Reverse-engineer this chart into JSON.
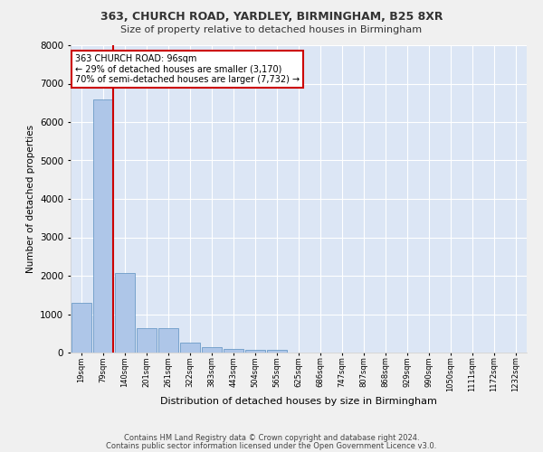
{
  "title1": "363, CHURCH ROAD, YARDLEY, BIRMINGHAM, B25 8XR",
  "title2": "Size of property relative to detached houses in Birmingham",
  "xlabel": "Distribution of detached houses by size in Birmingham",
  "ylabel": "Number of detached properties",
  "categories": [
    "19sqm",
    "79sqm",
    "140sqm",
    "201sqm",
    "261sqm",
    "322sqm",
    "383sqm",
    "443sqm",
    "504sqm",
    "565sqm",
    "625sqm",
    "686sqm",
    "747sqm",
    "807sqm",
    "868sqm",
    "929sqm",
    "990sqm",
    "1050sqm",
    "1111sqm",
    "1172sqm",
    "1232sqm"
  ],
  "values": [
    1300,
    6600,
    2075,
    640,
    640,
    250,
    130,
    100,
    60,
    60,
    0,
    0,
    0,
    0,
    0,
    0,
    0,
    0,
    0,
    0,
    0
  ],
  "bar_color": "#aec6e8",
  "bar_edge_color": "#5a8fc0",
  "property_line_x": 1.45,
  "property_line_color": "#cc0000",
  "annotation_text": "363 CHURCH ROAD: 96sqm\n← 29% of detached houses are smaller (3,170)\n70% of semi-detached houses are larger (7,732) →",
  "annotation_box_color": "#ffffff",
  "annotation_box_edge": "#cc0000",
  "ylim": [
    0,
    8000
  ],
  "yticks": [
    0,
    1000,
    2000,
    3000,
    4000,
    5000,
    6000,
    7000,
    8000
  ],
  "background_color": "#dce6f5",
  "grid_color": "#ffffff",
  "fig_bg_color": "#f0f0f0",
  "footer1": "Contains HM Land Registry data © Crown copyright and database right 2024.",
  "footer2": "Contains public sector information licensed under the Open Government Licence v3.0."
}
